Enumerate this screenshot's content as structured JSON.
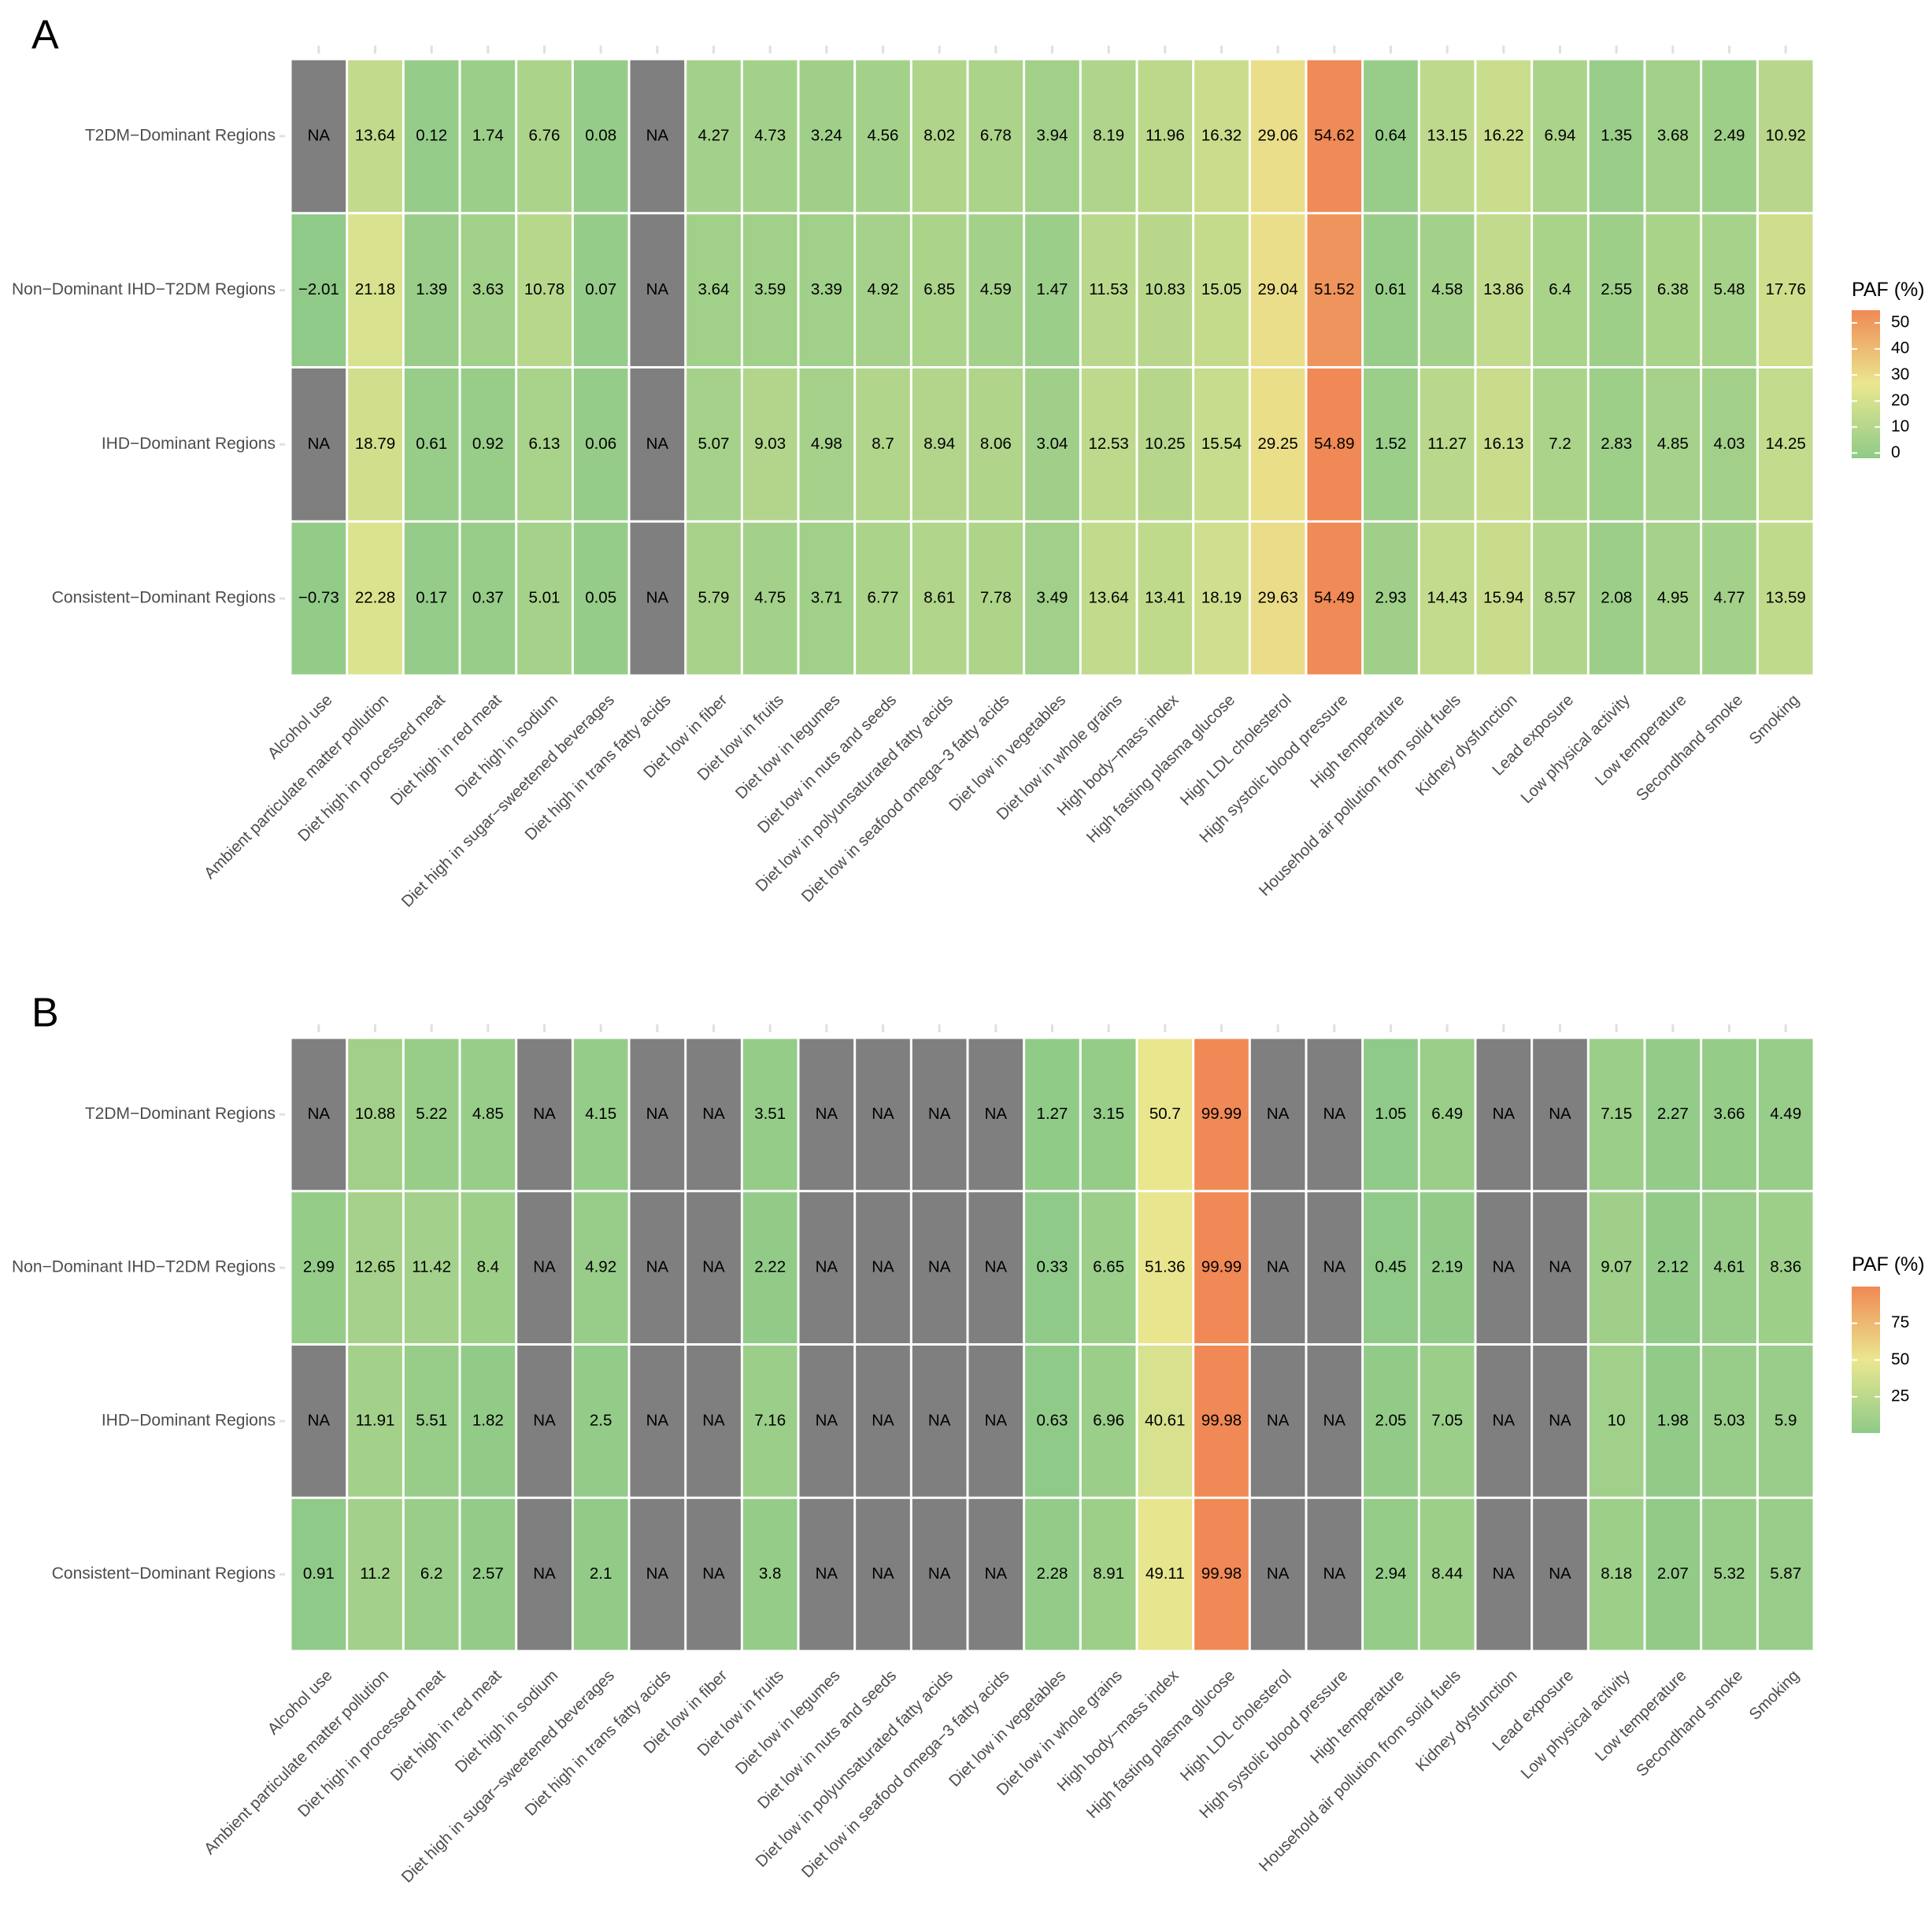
{
  "chart_data": [
    {
      "type": "heatmap",
      "panel_label": "A",
      "legend_title": "PAF (%)",
      "legend_ticks": [
        0,
        10,
        20,
        30,
        40,
        50
      ],
      "value_range": [
        -2.01,
        54.89
      ],
      "legend_range": [
        -2.01,
        54.89
      ],
      "na_label": "NA",
      "rows": [
        "T2DM−Dominant Regions",
        "Non−Dominant IHD−T2DM Regions",
        "IHD−Dominant Regions",
        "Consistent−Dominant Regions"
      ],
      "columns": [
        "Alcohol use",
        "Ambient particulate matter pollution",
        "Diet high in processed meat",
        "Diet high in red meat",
        "Diet high in sodium",
        "Diet high in sugar−sweetened beverages",
        "Diet high in trans fatty acids",
        "Diet low in fiber",
        "Diet low in fruits",
        "Diet low in legumes",
        "Diet low in nuts and seeds",
        "Diet low in polyunsaturated fatty acids",
        "Diet low in seafood omega−3 fatty acids",
        "Diet low in vegetables",
        "Diet low in whole grains",
        "High body−mass index",
        "High fasting plasma glucose",
        "High LDL cholesterol",
        "High systolic blood pressure",
        "High temperature",
        "Household air pollution from solid fuels",
        "Kidney dysfunction",
        "Lead exposure",
        "Low physical activity",
        "Low temperature",
        "Secondhand smoke",
        "Smoking"
      ],
      "values": [
        [
          null,
          13.64,
          0.12,
          1.74,
          6.76,
          0.08,
          null,
          4.27,
          4.73,
          3.24,
          4.56,
          8.02,
          6.78,
          3.94,
          8.19,
          11.96,
          16.32,
          29.06,
          54.62,
          0.64,
          13.15,
          16.22,
          6.94,
          1.35,
          3.68,
          2.49,
          10.92
        ],
        [
          -2.01,
          21.18,
          1.39,
          3.63,
          10.78,
          0.07,
          null,
          3.64,
          3.59,
          3.39,
          4.92,
          6.85,
          4.59,
          1.47,
          11.53,
          10.83,
          15.05,
          29.04,
          51.52,
          0.61,
          4.58,
          13.86,
          6.4,
          2.55,
          6.38,
          5.48,
          17.76
        ],
        [
          null,
          18.79,
          0.61,
          0.92,
          6.13,
          0.06,
          null,
          5.07,
          9.03,
          4.98,
          8.7,
          8.94,
          8.06,
          3.04,
          12.53,
          10.25,
          15.54,
          29.25,
          54.89,
          1.52,
          11.27,
          16.13,
          7.2,
          2.83,
          4.85,
          4.03,
          14.25
        ],
        [
          -0.73,
          22.28,
          0.17,
          0.37,
          5.01,
          0.05,
          null,
          5.79,
          4.75,
          3.71,
          6.77,
          8.61,
          7.78,
          3.49,
          13.64,
          13.41,
          18.19,
          29.63,
          54.49,
          2.93,
          14.43,
          15.94,
          8.57,
          2.08,
          4.95,
          4.77,
          13.59
        ]
      ]
    },
    {
      "type": "heatmap",
      "panel_label": "B",
      "legend_title": "PAF (%)",
      "legend_ticks": [
        25,
        50,
        75
      ],
      "value_range": [
        0.33,
        99.99
      ],
      "legend_range": [
        0.33,
        99.99
      ],
      "na_label": "NA",
      "rows": [
        "T2DM−Dominant Regions",
        "Non−Dominant IHD−T2DM Regions",
        "IHD−Dominant Regions",
        "Consistent−Dominant Regions"
      ],
      "columns": [
        "Alcohol use",
        "Ambient particulate matter pollution",
        "Diet high in processed meat",
        "Diet high in red meat",
        "Diet high in sodium",
        "Diet high in sugar−sweetened beverages",
        "Diet high in trans fatty acids",
        "Diet low in fiber",
        "Diet low in fruits",
        "Diet low in legumes",
        "Diet low in nuts and seeds",
        "Diet low in polyunsaturated fatty acids",
        "Diet low in seafood omega−3 fatty acids",
        "Diet low in vegetables",
        "Diet low in whole grains",
        "High body−mass index",
        "High fasting plasma glucose",
        "High LDL cholesterol",
        "High systolic blood pressure",
        "High temperature",
        "Household air pollution from solid fuels",
        "Kidney dysfunction",
        "Lead exposure",
        "Low physical activity",
        "Low temperature",
        "Secondhand smoke",
        "Smoking"
      ],
      "values": [
        [
          null,
          10.88,
          5.22,
          4.85,
          null,
          4.15,
          null,
          null,
          3.51,
          null,
          null,
          null,
          null,
          1.27,
          3.15,
          50.7,
          99.99,
          null,
          null,
          1.05,
          6.49,
          null,
          null,
          7.15,
          2.27,
          3.66,
          4.49
        ],
        [
          2.99,
          12.65,
          11.42,
          8.4,
          null,
          4.92,
          null,
          null,
          2.22,
          null,
          null,
          null,
          null,
          0.33,
          6.65,
          51.36,
          99.99,
          null,
          null,
          0.45,
          2.19,
          null,
          null,
          9.07,
          2.12,
          4.61,
          8.36
        ],
        [
          null,
          11.91,
          5.51,
          1.82,
          null,
          2.5,
          null,
          null,
          7.16,
          null,
          null,
          null,
          null,
          0.63,
          6.96,
          40.61,
          99.98,
          null,
          null,
          2.05,
          7.05,
          null,
          null,
          10,
          1.98,
          5.03,
          5.9
        ],
        [
          0.91,
          11.2,
          6.2,
          2.57,
          null,
          2.1,
          null,
          null,
          3.8,
          null,
          null,
          null,
          null,
          2.28,
          8.91,
          49.11,
          99.98,
          null,
          null,
          2.94,
          8.44,
          null,
          null,
          8.18,
          2.07,
          5.32,
          5.87
        ]
      ]
    }
  ],
  "colors": {
    "low": "#8fca88",
    "mid": "#e9e78f",
    "high": "#f08955",
    "na": "#7f7f7f",
    "text": "#000000",
    "axis_text": "#4d4d4d"
  }
}
